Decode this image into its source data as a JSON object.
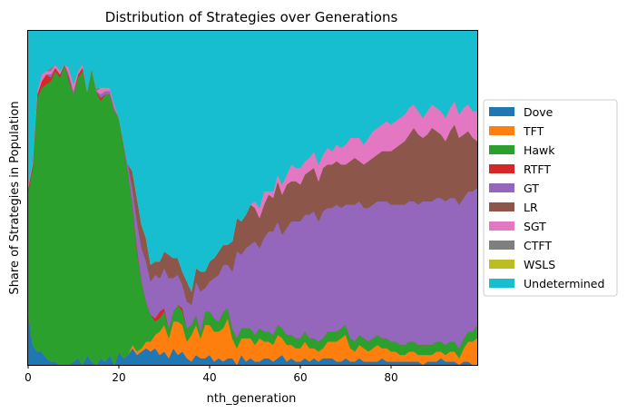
{
  "chart_data": {
    "type": "area",
    "title": "Distribution of Strategies over Generations",
    "xlabel": "nth_generation",
    "ylabel": "Share of Strategies in Population",
    "xlim": [
      0,
      99
    ],
    "ylim": [
      0,
      1
    ],
    "x_ticks": [
      0,
      20,
      40,
      60,
      80
    ],
    "grid": false,
    "legend_position": "outside-right",
    "x": [
      0,
      1,
      2,
      3,
      4,
      5,
      6,
      7,
      8,
      9,
      10,
      11,
      12,
      13,
      14,
      15,
      16,
      17,
      18,
      19,
      20,
      21,
      22,
      23,
      24,
      25,
      26,
      27,
      28,
      29,
      30,
      31,
      32,
      33,
      34,
      35,
      36,
      37,
      38,
      39,
      40,
      41,
      42,
      43,
      44,
      45,
      46,
      47,
      48,
      49,
      50,
      51,
      52,
      53,
      54,
      55,
      56,
      57,
      58,
      59,
      60,
      61,
      62,
      63,
      64,
      65,
      66,
      67,
      68,
      69,
      70,
      71,
      72,
      73,
      74,
      75,
      76,
      77,
      78,
      79,
      80,
      81,
      82,
      83,
      84,
      85,
      86,
      87,
      88,
      89,
      90,
      91,
      92,
      93,
      94,
      95,
      96,
      97,
      98,
      99
    ],
    "series": [
      {
        "name": "Dove",
        "color": "#1f77b4",
        "values": [
          0.16,
          0.06,
          0.04,
          0.04,
          0.02,
          0.01,
          0.01,
          0.0,
          0.0,
          0.0,
          0.01,
          0.02,
          0.0,
          0.03,
          0.01,
          0.0,
          0.02,
          0.01,
          0.03,
          0.0,
          0.04,
          0.02,
          0.03,
          0.05,
          0.03,
          0.04,
          0.05,
          0.04,
          0.05,
          0.03,
          0.04,
          0.02,
          0.05,
          0.03,
          0.04,
          0.02,
          0.01,
          0.03,
          0.02,
          0.02,
          0.03,
          0.01,
          0.02,
          0.01,
          0.02,
          0.02,
          0.0,
          0.03,
          0.01,
          0.02,
          0.01,
          0.01,
          0.02,
          0.02,
          0.01,
          0.02,
          0.03,
          0.01,
          0.02,
          0.01,
          0.01,
          0.02,
          0.01,
          0.02,
          0.01,
          0.02,
          0.02,
          0.02,
          0.01,
          0.01,
          0.02,
          0.01,
          0.01,
          0.02,
          0.01,
          0.01,
          0.01,
          0.01,
          0.02,
          0.01,
          0.01,
          0.01,
          0.01,
          0.01,
          0.01,
          0.01,
          0.01,
          0.0,
          0.01,
          0.01,
          0.01,
          0.02,
          0.01,
          0.01,
          0.01,
          0.0,
          0.01,
          0.01,
          0.0,
          0.0
        ]
      },
      {
        "name": "TFT",
        "color": "#ff7f0e",
        "values": [
          0.0,
          0.0,
          0.0,
          0.0,
          0.0,
          0.0,
          0.0,
          0.0,
          0.0,
          0.0,
          0.0,
          0.0,
          0.0,
          0.0,
          0.0,
          0.0,
          0.0,
          0.0,
          0.0,
          0.0,
          0.0,
          0.0,
          0.0,
          0.01,
          0.01,
          0.01,
          0.02,
          0.03,
          0.04,
          0.07,
          0.08,
          0.06,
          0.08,
          0.1,
          0.08,
          0.05,
          0.08,
          0.09,
          0.06,
          0.1,
          0.09,
          0.09,
          0.08,
          0.1,
          0.12,
          0.06,
          0.05,
          0.05,
          0.07,
          0.06,
          0.05,
          0.07,
          0.05,
          0.05,
          0.05,
          0.07,
          0.05,
          0.05,
          0.04,
          0.04,
          0.04,
          0.05,
          0.04,
          0.03,
          0.03,
          0.03,
          0.05,
          0.05,
          0.06,
          0.07,
          0.07,
          0.04,
          0.03,
          0.04,
          0.04,
          0.03,
          0.04,
          0.05,
          0.03,
          0.04,
          0.03,
          0.03,
          0.02,
          0.02,
          0.03,
          0.03,
          0.02,
          0.03,
          0.02,
          0.02,
          0.03,
          0.02,
          0.02,
          0.03,
          0.03,
          0.02,
          0.04,
          0.06,
          0.07,
          0.08
        ]
      },
      {
        "name": "Hawk",
        "color": "#2ca02c",
        "values": [
          0.36,
          0.53,
          0.76,
          0.79,
          0.82,
          0.84,
          0.87,
          0.86,
          0.9,
          0.85,
          0.8,
          0.84,
          0.88,
          0.79,
          0.88,
          0.82,
          0.77,
          0.8,
          0.78,
          0.76,
          0.7,
          0.64,
          0.55,
          0.42,
          0.3,
          0.2,
          0.12,
          0.08,
          0.04,
          0.04,
          0.04,
          0.03,
          0.03,
          0.05,
          0.04,
          0.04,
          0.03,
          0.03,
          0.02,
          0.04,
          0.04,
          0.04,
          0.03,
          0.05,
          0.03,
          0.03,
          0.03,
          0.03,
          0.03,
          0.03,
          0.03,
          0.03,
          0.03,
          0.03,
          0.03,
          0.03,
          0.03,
          0.03,
          0.03,
          0.03,
          0.03,
          0.03,
          0.03,
          0.03,
          0.03,
          0.03,
          0.03,
          0.03,
          0.03,
          0.03,
          0.03,
          0.03,
          0.03,
          0.03,
          0.03,
          0.03,
          0.03,
          0.03,
          0.03,
          0.03,
          0.03,
          0.03,
          0.03,
          0.03,
          0.03,
          0.03,
          0.03,
          0.03,
          0.03,
          0.03,
          0.03,
          0.03,
          0.03,
          0.03,
          0.03,
          0.03,
          0.03,
          0.03,
          0.03,
          0.04
        ]
      },
      {
        "name": "RTFT",
        "color": "#d62728",
        "values": [
          0.01,
          0.01,
          0.01,
          0.02,
          0.03,
          0.01,
          0.01,
          0.01,
          0.0,
          0.01,
          0.0,
          0.01,
          0.01,
          0.0,
          0.0,
          0.0,
          0.01,
          0.0,
          0.0,
          0.0,
          0.0,
          0.0,
          0.0,
          0.0,
          0.01,
          0.0,
          0.0,
          0.0,
          0.01,
          0.02,
          0.01,
          0.0,
          0.0,
          0.0,
          0.01,
          0.0,
          0.0,
          0.0,
          0.0,
          0.0,
          0.0,
          0.0,
          0.0,
          0.0,
          0.0,
          0.0,
          0.0,
          0.0,
          0.0,
          0.0,
          0.0,
          0.0,
          0.0,
          0.0,
          0.0,
          0.0,
          0.0,
          0.0,
          0.0,
          0.0,
          0.0,
          0.0,
          0.0,
          0.0,
          0.0,
          0.0,
          0.0,
          0.0,
          0.0,
          0.0,
          0.0,
          0.0,
          0.0,
          0.0,
          0.0,
          0.0,
          0.0,
          0.0,
          0.0,
          0.0,
          0.0,
          0.0,
          0.0,
          0.0,
          0.0,
          0.0,
          0.0,
          0.0,
          0.0,
          0.0,
          0.0,
          0.0,
          0.0,
          0.0,
          0.0,
          0.0,
          0.0,
          0.0,
          0.0,
          0.0
        ]
      },
      {
        "name": "GT",
        "color": "#9467bd",
        "values": [
          0.0,
          0.0,
          0.0,
          0.0,
          0.0,
          0.01,
          0.0,
          0.0,
          0.0,
          0.01,
          0.01,
          0.0,
          0.0,
          0.0,
          0.0,
          0.0,
          0.01,
          0.01,
          0.01,
          0.01,
          0.0,
          0.01,
          0.02,
          0.05,
          0.08,
          0.1,
          0.12,
          0.1,
          0.13,
          0.1,
          0.12,
          0.15,
          0.1,
          0.09,
          0.07,
          0.08,
          0.06,
          0.1,
          0.12,
          0.07,
          0.09,
          0.12,
          0.14,
          0.14,
          0.13,
          0.17,
          0.26,
          0.22,
          0.24,
          0.25,
          0.28,
          0.24,
          0.28,
          0.3,
          0.31,
          0.31,
          0.28,
          0.32,
          0.34,
          0.35,
          0.35,
          0.35,
          0.37,
          0.38,
          0.36,
          0.38,
          0.37,
          0.37,
          0.38,
          0.36,
          0.36,
          0.4,
          0.41,
          0.4,
          0.39,
          0.4,
          0.4,
          0.4,
          0.41,
          0.41,
          0.41,
          0.41,
          0.42,
          0.42,
          0.42,
          0.42,
          0.42,
          0.43,
          0.43,
          0.43,
          0.43,
          0.43,
          0.43,
          0.43,
          0.43,
          0.43,
          0.42,
          0.42,
          0.42,
          0.41
        ]
      },
      {
        "name": "LR",
        "color": "#8c564b",
        "values": [
          0.0,
          0.0,
          0.0,
          0.0,
          0.0,
          0.0,
          0.0,
          0.0,
          0.0,
          0.0,
          0.0,
          0.0,
          0.0,
          0.0,
          0.0,
          0.0,
          0.0,
          0.0,
          0.0,
          0.0,
          0.0,
          0.0,
          0.0,
          0.05,
          0.07,
          0.07,
          0.07,
          0.05,
          0.04,
          0.05,
          0.05,
          0.07,
          0.06,
          0.05,
          0.04,
          0.06,
          0.04,
          0.04,
          0.06,
          0.05,
          0.06,
          0.06,
          0.07,
          0.06,
          0.06,
          0.09,
          0.1,
          0.1,
          0.1,
          0.12,
          0.1,
          0.09,
          0.1,
          0.11,
          0.1,
          0.12,
          0.12,
          0.13,
          0.12,
          0.12,
          0.11,
          0.12,
          0.13,
          0.13,
          0.12,
          0.13,
          0.13,
          0.13,
          0.13,
          0.13,
          0.12,
          0.13,
          0.14,
          0.12,
          0.13,
          0.14,
          0.14,
          0.14,
          0.15,
          0.15,
          0.16,
          0.17,
          0.18,
          0.19,
          0.2,
          0.22,
          0.21,
          0.19,
          0.2,
          0.22,
          0.2,
          0.19,
          0.18,
          0.2,
          0.22,
          0.2,
          0.19,
          0.18,
          0.16,
          0.14
        ]
      },
      {
        "name": "SGT",
        "color": "#e377c2",
        "values": [
          0.01,
          0.01,
          0.01,
          0.02,
          0.01,
          0.01,
          0.01,
          0.01,
          0.0,
          0.02,
          0.02,
          0.01,
          0.01,
          0.0,
          0.0,
          0.0,
          0.02,
          0.01,
          0.01,
          0.01,
          0.0,
          0.0,
          0.0,
          0.0,
          0.0,
          0.0,
          0.0,
          0.0,
          0.0,
          0.0,
          0.0,
          0.0,
          0.0,
          0.0,
          0.0,
          0.0,
          0.0,
          0.0,
          0.0,
          0.0,
          0.0,
          0.0,
          0.0,
          0.0,
          0.0,
          0.0,
          0.0,
          0.0,
          0.0,
          0.0,
          0.02,
          0.03,
          0.04,
          0.01,
          0.02,
          0.02,
          0.03,
          0.03,
          0.05,
          0.04,
          0.05,
          0.04,
          0.04,
          0.05,
          0.05,
          0.04,
          0.05,
          0.04,
          0.05,
          0.05,
          0.06,
          0.07,
          0.06,
          0.07,
          0.06,
          0.07,
          0.08,
          0.08,
          0.08,
          0.09,
          0.08,
          0.08,
          0.08,
          0.08,
          0.08,
          0.07,
          0.07,
          0.06,
          0.07,
          0.07,
          0.07,
          0.07,
          0.07,
          0.07,
          0.07,
          0.07,
          0.08,
          0.08,
          0.08,
          0.09
        ]
      },
      {
        "name": "CTFT",
        "color": "#7f7f7f",
        "values": [
          0.0,
          0.0,
          0.0,
          0.0,
          0.0,
          0.01,
          0.0,
          0.0,
          0.0,
          0.0,
          0.0,
          0.0,
          0.0,
          0.0,
          0.0,
          0.01,
          0.0,
          0.0,
          0.0,
          0.0,
          0.0,
          0.0,
          0.0,
          0.0,
          0.0,
          0.0,
          0.0,
          0.0,
          0.0,
          0.0,
          0.0,
          0.0,
          0.0,
          0.0,
          0.0,
          0.0,
          0.0,
          0.0,
          0.0,
          0.0,
          0.0,
          0.0,
          0.0,
          0.0,
          0.0,
          0.0,
          0.0,
          0.0,
          0.0,
          0.0,
          0.0,
          0.0,
          0.0,
          0.0,
          0.0,
          0.0,
          0.0,
          0.0,
          0.0,
          0.0,
          0.0,
          0.0,
          0.0,
          0.0,
          0.0,
          0.0,
          0.0,
          0.0,
          0.0,
          0.0,
          0.0,
          0.0,
          0.0,
          0.0,
          0.0,
          0.0,
          0.0,
          0.0,
          0.0,
          0.0,
          0.0,
          0.0,
          0.0,
          0.0,
          0.0,
          0.0,
          0.0,
          0.0,
          0.0,
          0.0,
          0.0,
          0.0,
          0.0,
          0.0,
          0.0,
          0.0,
          0.0,
          0.0,
          0.0,
          0.0
        ]
      },
      {
        "name": "WSLS",
        "color": "#bcbd22",
        "values": [
          0.0,
          0.0,
          0.0,
          0.0,
          0.0,
          0.0,
          0.0,
          0.0,
          0.0,
          0.0,
          0.0,
          0.0,
          0.0,
          0.0,
          0.0,
          0.0,
          0.0,
          0.0,
          0.0,
          0.0,
          0.0,
          0.0,
          0.0,
          0.0,
          0.0,
          0.0,
          0.0,
          0.0,
          0.0,
          0.0,
          0.0,
          0.0,
          0.0,
          0.0,
          0.0,
          0.0,
          0.0,
          0.0,
          0.0,
          0.0,
          0.0,
          0.0,
          0.0,
          0.0,
          0.0,
          0.0,
          0.0,
          0.0,
          0.0,
          0.0,
          0.0,
          0.0,
          0.0,
          0.0,
          0.0,
          0.0,
          0.0,
          0.0,
          0.0,
          0.0,
          0.0,
          0.0,
          0.0,
          0.0,
          0.0,
          0.0,
          0.0,
          0.0,
          0.0,
          0.0,
          0.0,
          0.0,
          0.0,
          0.0,
          0.0,
          0.0,
          0.0,
          0.0,
          0.0,
          0.0,
          0.0,
          0.0,
          0.0,
          0.0,
          0.0,
          0.0,
          0.0,
          0.0,
          0.0,
          0.0,
          0.0,
          0.0,
          0.0,
          0.0,
          0.0,
          0.0,
          0.0,
          0.0,
          0.0,
          0.0
        ]
      }
    ],
    "remainder_series": {
      "name": "Undetermined",
      "color": "#17becf"
    }
  }
}
